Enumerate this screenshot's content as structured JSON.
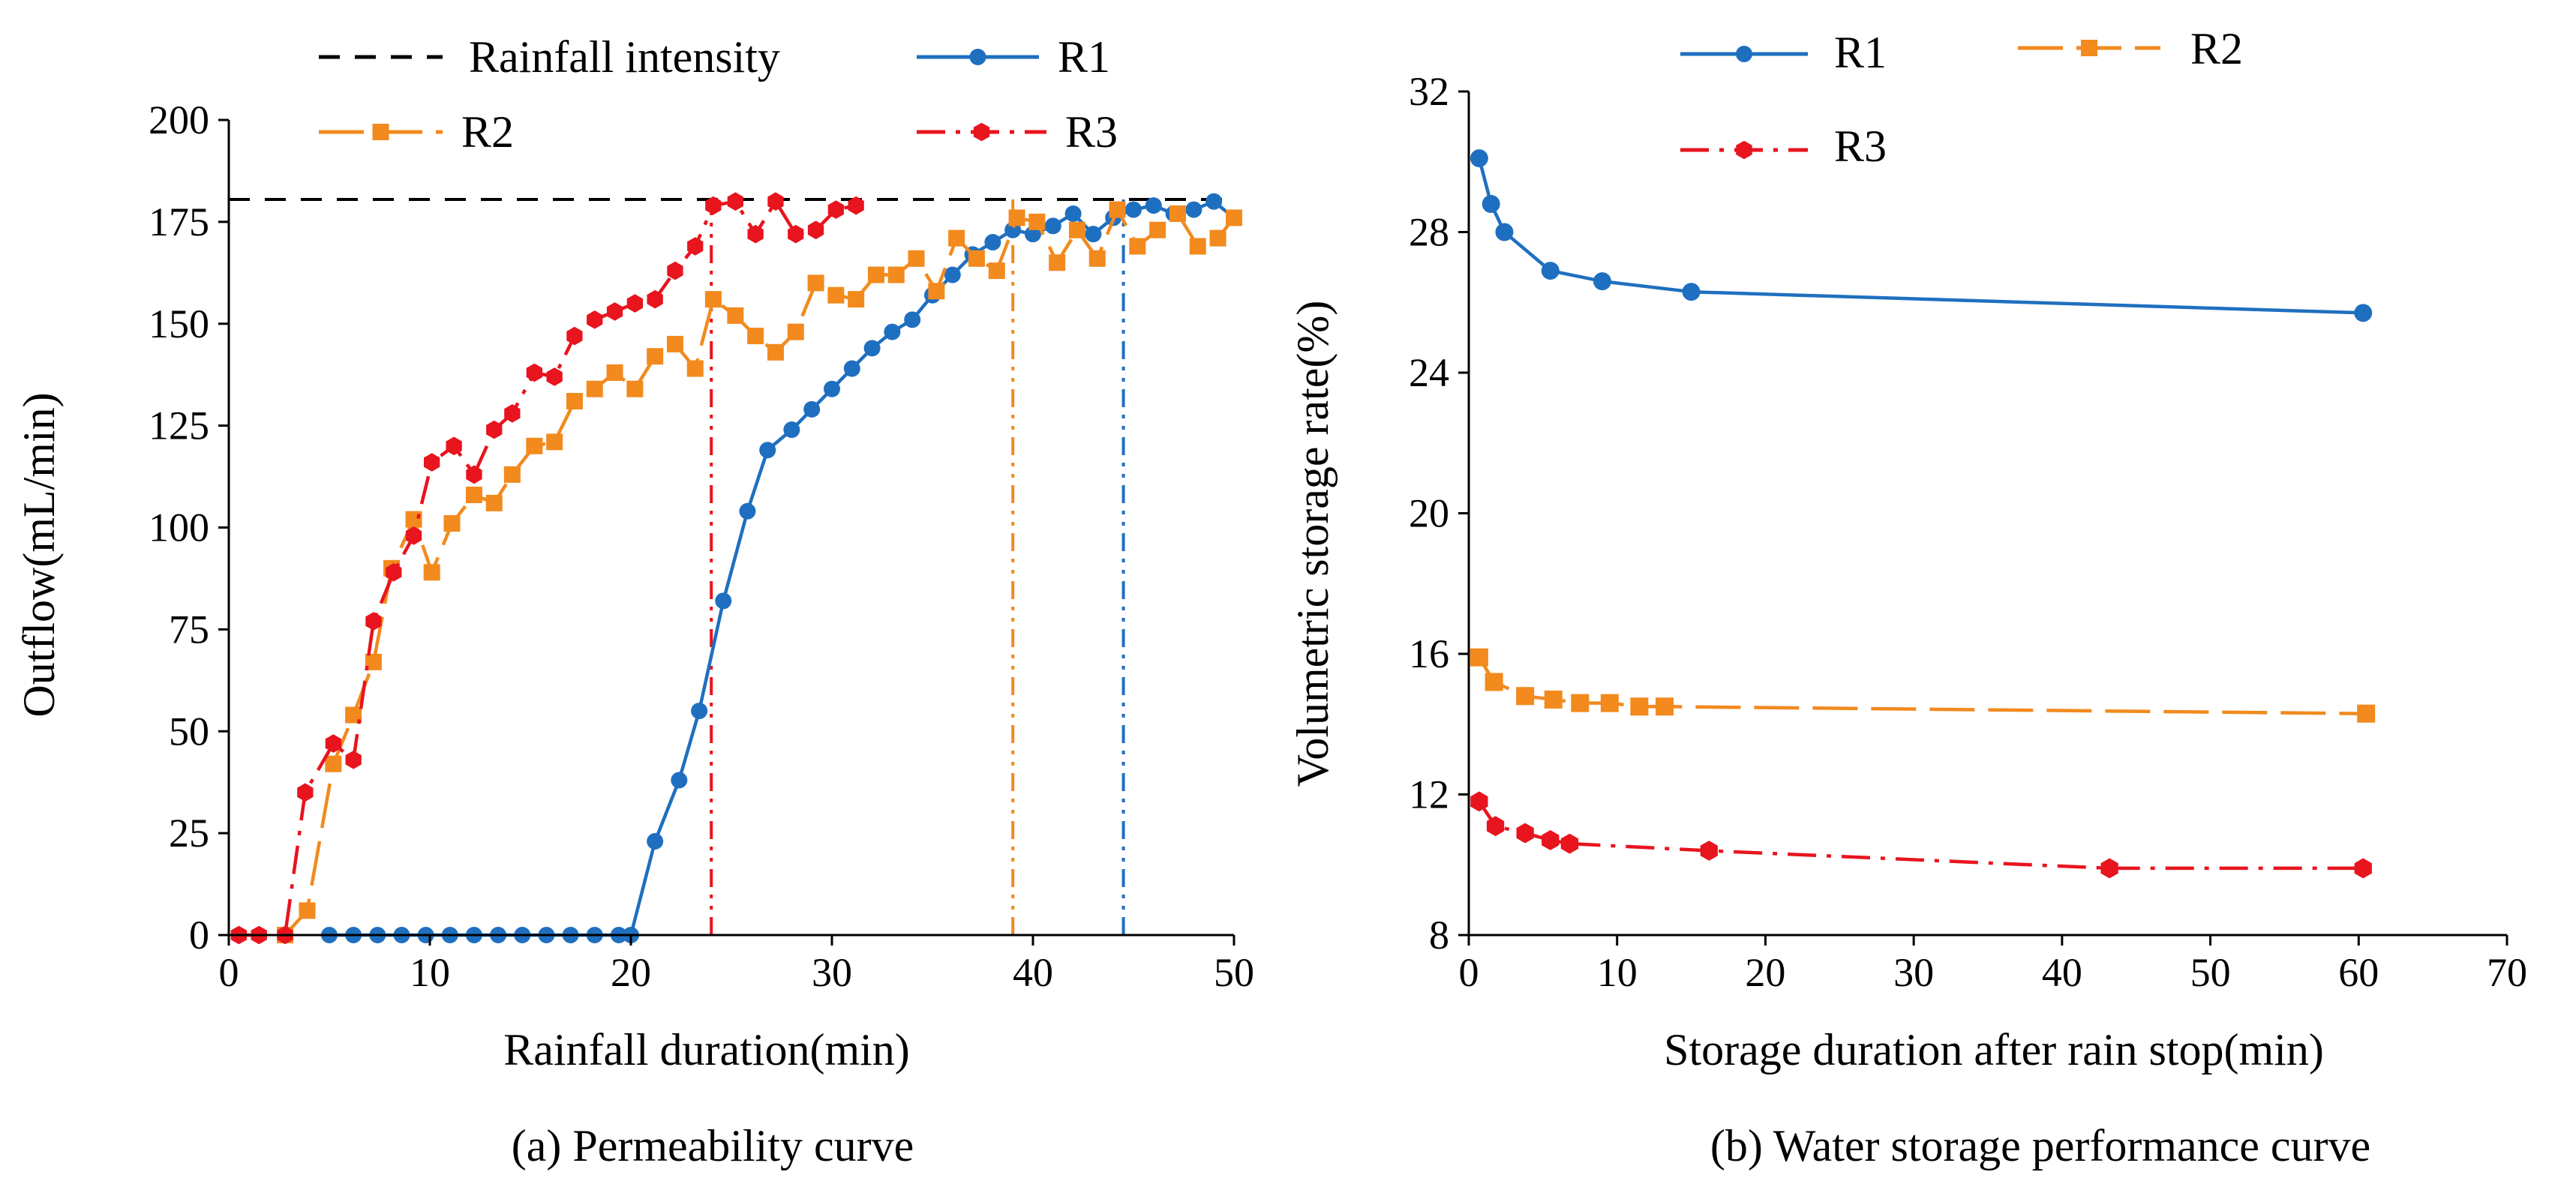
{
  "colors": {
    "R1": "#1f6fc0",
    "R2": "#f28a1e",
    "R3": "#e8141e",
    "rain": "#000000"
  },
  "chart_data": [
    {
      "type": "line",
      "caption": "(a) Permeability curve",
      "xlabel": "Rainfall duration(min)",
      "ylabel": "Outflow(mL/min)",
      "xlim": [
        0,
        50
      ],
      "ylim": [
        0,
        200
      ],
      "xticks": [
        "0",
        "10",
        "20",
        "30",
        "40",
        "50"
      ],
      "yticks": [
        "0",
        "25",
        "50",
        "75",
        "100",
        "125",
        "150",
        "175",
        "200"
      ],
      "legend": {
        "rain": "Rainfall intensity",
        "R1": "R1",
        "R2": "R2",
        "R3": "R3"
      },
      "reference_line": {
        "name": "Rainfall intensity",
        "y": 180.5
      },
      "vertical_markers": [
        {
          "series": "R3",
          "x": 24
        },
        {
          "series": "R2",
          "x": 39
        },
        {
          "series": "R1",
          "x": 44.5
        }
      ],
      "series": [
        {
          "name": "R1",
          "x": [
            5,
            6.2,
            7.4,
            8.6,
            9.8,
            11,
            12.2,
            13.4,
            14.6,
            15.8,
            17,
            18.2,
            19.4,
            20.0,
            21.2,
            22.4,
            23.4,
            24.6,
            25.8,
            26.8,
            28,
            29,
            30,
            31,
            32,
            33,
            34,
            35,
            36,
            37,
            38,
            39,
            40,
            41,
            42,
            43,
            44,
            45,
            46,
            47,
            48,
            49,
            50
          ],
          "y": [
            0,
            0,
            0,
            0,
            0,
            0,
            0,
            0,
            0,
            0,
            0,
            0,
            0,
            0,
            23,
            38,
            55,
            82,
            104,
            119,
            124,
            129,
            134,
            139,
            144,
            148,
            151,
            157,
            162,
            167,
            170,
            173,
            172,
            174,
            177,
            172,
            176,
            178,
            179,
            177,
            178,
            180,
            176
          ]
        },
        {
          "name": "R2",
          "x": [
            2.8,
            3.9,
            5.2,
            6.2,
            7.2,
            8.1,
            9.2,
            10.1,
            11.1,
            12.2,
            13.2,
            14.1,
            15.2,
            16.2,
            17.2,
            18.2,
            19.2,
            20.2,
            21.2,
            22.2,
            23.2,
            24.1,
            25.2,
            26.2,
            27.2,
            28.2,
            29.2,
            30.2,
            31.2,
            32.2,
            33.2,
            34.2,
            35.2,
            36.2,
            37.2,
            38.2,
            39.2,
            40.2,
            41.2,
            42.2,
            43.2,
            44.2,
            45.2,
            46.2,
            47.2,
            48.2,
            49.2,
            50
          ],
          "y": [
            0,
            6,
            42,
            54,
            67,
            90,
            102,
            89,
            101,
            108,
            106,
            113,
            120,
            121,
            131,
            134,
            138,
            134,
            142,
            145,
            139,
            156,
            152,
            147,
            143,
            148,
            160,
            157,
            156,
            162,
            162,
            166,
            158,
            171,
            166,
            163,
            176,
            175,
            165,
            173,
            166,
            178,
            169,
            173,
            177,
            169,
            171,
            176
          ]
        },
        {
          "name": "R3",
          "x": [
            0.5,
            1.5,
            2.8,
            3.8,
            5.2,
            6.2,
            7.2,
            8.2,
            9.2,
            10.1,
            11.2,
            12.2,
            13.2,
            14.1,
            15.2,
            16.2,
            17.2,
            18.2,
            19.2,
            20.2,
            21.2,
            22.2,
            23.2,
            24.1,
            25.2,
            26.2,
            27.2,
            28.2,
            29.2,
            30.2,
            31.2
          ],
          "y": [
            0,
            0,
            0,
            35,
            47,
            43,
            77,
            89,
            98,
            116,
            120,
            113,
            124,
            128,
            138,
            137,
            147,
            151,
            153,
            155,
            156,
            163,
            169,
            179,
            180,
            172,
            180,
            172,
            173,
            178,
            179
          ]
        }
      ]
    },
    {
      "type": "line",
      "caption": "(b) Water storage performance curve",
      "xlabel": "Storage duration after rain stop(min)",
      "ylabel": "Volumetric storage rate(%)",
      "xlim": [
        0,
        70
      ],
      "ylim": [
        8,
        32
      ],
      "xticks": [
        "0",
        "10",
        "20",
        "30",
        "40",
        "50",
        "60",
        "70"
      ],
      "yticks": [
        "8",
        "12",
        "16",
        "20",
        "24",
        "28",
        "32"
      ],
      "legend": {
        "R1": "R1",
        "R2": "R2",
        "R3": "R3"
      },
      "series": [
        {
          "name": "R1",
          "x": [
            0.7,
            1.5,
            2.4,
            5.5,
            9,
            15,
            60.3
          ],
          "y": [
            30.1,
            28.8,
            28.0,
            26.9,
            26.6,
            26.3,
            25.7
          ]
        },
        {
          "name": "R2",
          "x": [
            0.7,
            1.7,
            3.8,
            5.7,
            7.5,
            9.5,
            11.5,
            13.2,
            60.5
          ],
          "y": [
            15.9,
            15.2,
            14.8,
            14.7,
            14.6,
            14.6,
            14.5,
            14.5,
            14.3
          ]
        },
        {
          "name": "R3",
          "x": [
            0.7,
            1.8,
            3.8,
            5.5,
            6.8,
            16.2,
            43.2,
            60.3
          ],
          "y": [
            11.8,
            11.1,
            10.9,
            10.7,
            10.6,
            10.4,
            9.9,
            9.9
          ]
        }
      ]
    }
  ]
}
